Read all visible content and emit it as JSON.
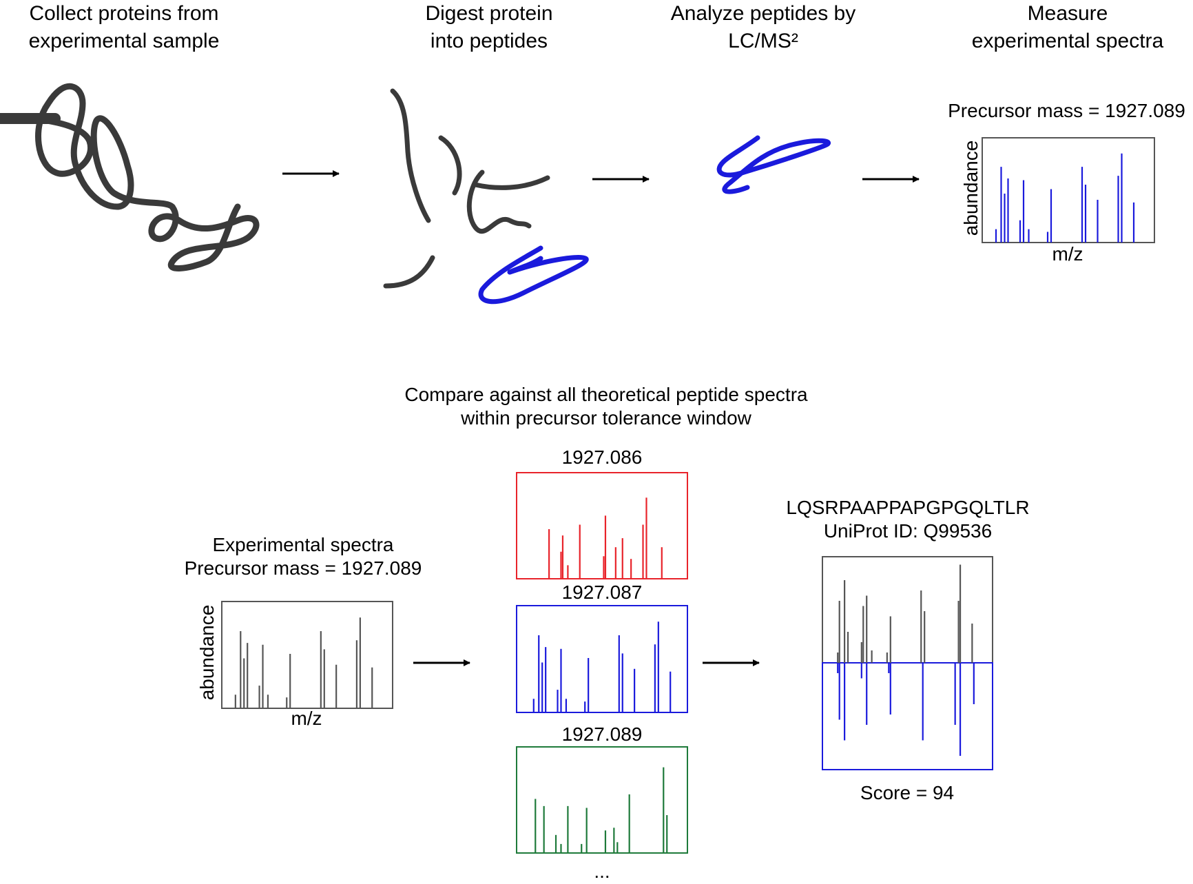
{
  "steps": [
    {
      "line1": "Collect proteins from",
      "line2": "experimental sample"
    },
    {
      "line1": "Digest protein",
      "line2": "into peptides"
    },
    {
      "line1": "Analyze peptides by",
      "line2": "LC/MS²"
    },
    {
      "line1": "Measure",
      "line2": "experimental spectra"
    }
  ],
  "top_spectrum": {
    "precursor_label": "Precursor mass = 1927.089",
    "ylabel": "abundance",
    "xlabel": "m/z"
  },
  "compare": {
    "line1": "Compare against all theoretical peptide spectra",
    "line2": "within precursor tolerance window"
  },
  "experimental": {
    "title": "Experimental spectra",
    "precursor_label": "Precursor mass = 1927.089",
    "ylabel": "abundance",
    "xlabel": "m/z"
  },
  "candidates": [
    {
      "mass": "1927.086",
      "color": "#e8232a"
    },
    {
      "mass": "1927.087",
      "color": "#1a1adc"
    },
    {
      "mass": "1927.089",
      "color": "#1e7a3a"
    }
  ],
  "ellipsis": "...",
  "result": {
    "peptide": "LQSRPAAPPAPGPGQLTLR",
    "uniprot": "UniProt ID: Q99536",
    "score": "Score = 94"
  },
  "colors": {
    "protein": "#3a3a3a",
    "peptide": "#1a1adc",
    "spectrum_gray": "#555555",
    "frame_gray": "#555555"
  }
}
